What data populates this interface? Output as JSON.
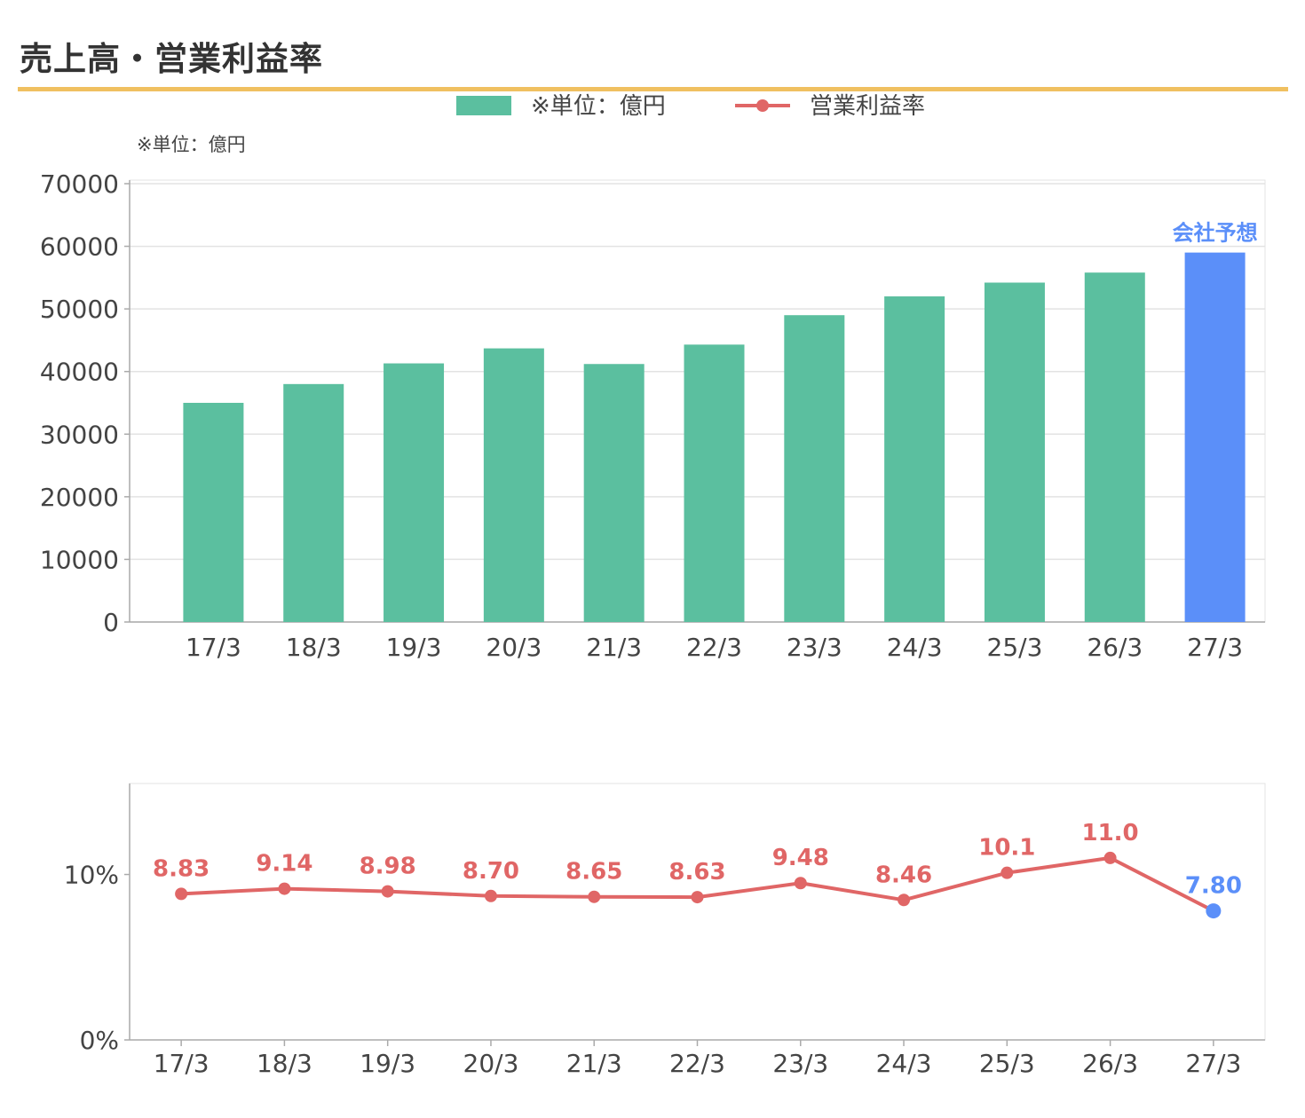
{
  "header": {
    "title": "売上高・営業利益率"
  },
  "colors": {
    "bar": "#5bbf9f",
    "forecast": "#5b8ff9",
    "line": "#e06666",
    "accent_rule": "#f0c060",
    "grid": "#e3e3e3",
    "axis": "#aaaaaa",
    "text": "#444444"
  },
  "chart_data": [
    {
      "type": "bar",
      "categories": [
        "17/3",
        "18/3",
        "19/3",
        "20/3",
        "21/3",
        "22/3",
        "23/3",
        "24/3",
        "25/3",
        "26/3",
        "27/3"
      ],
      "series": [
        {
          "name": "※単位：億円",
          "values": [
            35000,
            38000,
            41300,
            43700,
            41200,
            44300,
            49000,
            52000,
            54200,
            55800,
            59000
          ]
        }
      ],
      "forecast_index": 10,
      "forecast_label": "会社予想",
      "unit_note": "※単位：億円",
      "ylim": [
        0,
        70000
      ],
      "yticks": [
        "0",
        "10000",
        "20000",
        "30000",
        "40000",
        "50000",
        "60000",
        "70000"
      ],
      "ytick_values": [
        0,
        10000,
        20000,
        30000,
        40000,
        50000,
        60000,
        70000
      ],
      "grid": true,
      "legend": "top-center"
    },
    {
      "type": "line",
      "categories": [
        "17/3",
        "18/3",
        "19/3",
        "20/3",
        "21/3",
        "22/3",
        "23/3",
        "24/3",
        "25/3",
        "26/3",
        "27/3"
      ],
      "series": [
        {
          "name": "営業利益率",
          "values": [
            8.83,
            9.14,
            8.98,
            8.7,
            8.65,
            8.63,
            9.48,
            8.46,
            10.1,
            11.0,
            7.8
          ]
        }
      ],
      "data_labels": [
        "8.83",
        "9.14",
        "8.98",
        "8.70",
        "8.65",
        "8.63",
        "9.48",
        "8.46",
        "10.1",
        "11.0",
        "7.80"
      ],
      "forecast_index": 10,
      "ylim": [
        0,
        15.5
      ],
      "yticks": [
        "0%",
        "10%"
      ],
      "ytick_values": [
        0,
        10
      ],
      "grid": false
    }
  ]
}
